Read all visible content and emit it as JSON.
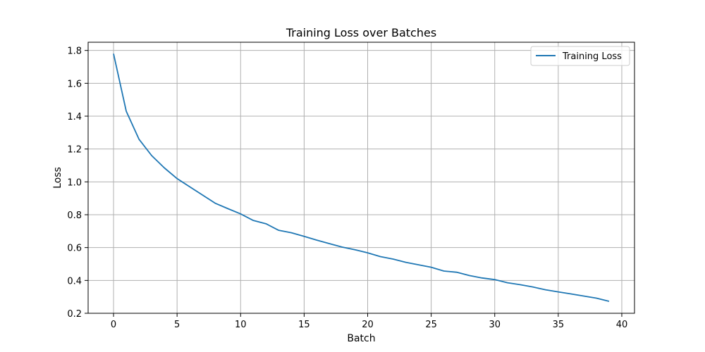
{
  "chart_data": {
    "type": "line",
    "title": "Training Loss over Batches",
    "xlabel": "Batch",
    "ylabel": "Loss",
    "xlim": [
      -2,
      41
    ],
    "ylim": [
      0.2,
      1.85
    ],
    "x_ticks": [
      0,
      5,
      10,
      15,
      20,
      25,
      30,
      35,
      40
    ],
    "y_ticks": [
      0.2,
      0.4,
      0.6,
      0.8,
      1.0,
      1.2,
      1.4,
      1.6,
      1.8
    ],
    "x_tick_labels": [
      "0",
      "5",
      "10",
      "15",
      "20",
      "25",
      "30",
      "35",
      "40"
    ],
    "y_tick_labels": [
      "0.2",
      "0.4",
      "0.6",
      "0.8",
      "1.0",
      "1.2",
      "1.4",
      "1.6",
      "1.8"
    ],
    "grid": true,
    "legend_position": "top-right",
    "series": [
      {
        "name": "Training Loss",
        "color": "#1f77b4",
        "x": [
          0,
          1,
          2,
          3,
          4,
          5,
          6,
          7,
          8,
          9,
          10,
          11,
          12,
          13,
          14,
          15,
          16,
          17,
          18,
          19,
          20,
          21,
          22,
          23,
          24,
          25,
          26,
          27,
          28,
          29,
          30,
          31,
          32,
          33,
          34,
          35,
          36,
          37,
          38,
          39
        ],
        "values": [
          1.78,
          1.43,
          1.26,
          1.16,
          1.085,
          1.02,
          0.97,
          0.92,
          0.87,
          0.837,
          0.805,
          0.765,
          0.745,
          0.705,
          0.69,
          0.668,
          0.645,
          0.624,
          0.603,
          0.587,
          0.568,
          0.545,
          0.53,
          0.51,
          0.495,
          0.48,
          0.457,
          0.45,
          0.43,
          0.415,
          0.405,
          0.386,
          0.374,
          0.36,
          0.343,
          0.33,
          0.318,
          0.305,
          0.292,
          0.273
        ]
      }
    ]
  }
}
